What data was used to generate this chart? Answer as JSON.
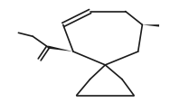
{
  "bg_color": "#ffffff",
  "line_color": "#1a1a1a",
  "line_width": 1.2,
  "figsize": [
    1.88,
    1.24
  ],
  "dpi": 100
}
